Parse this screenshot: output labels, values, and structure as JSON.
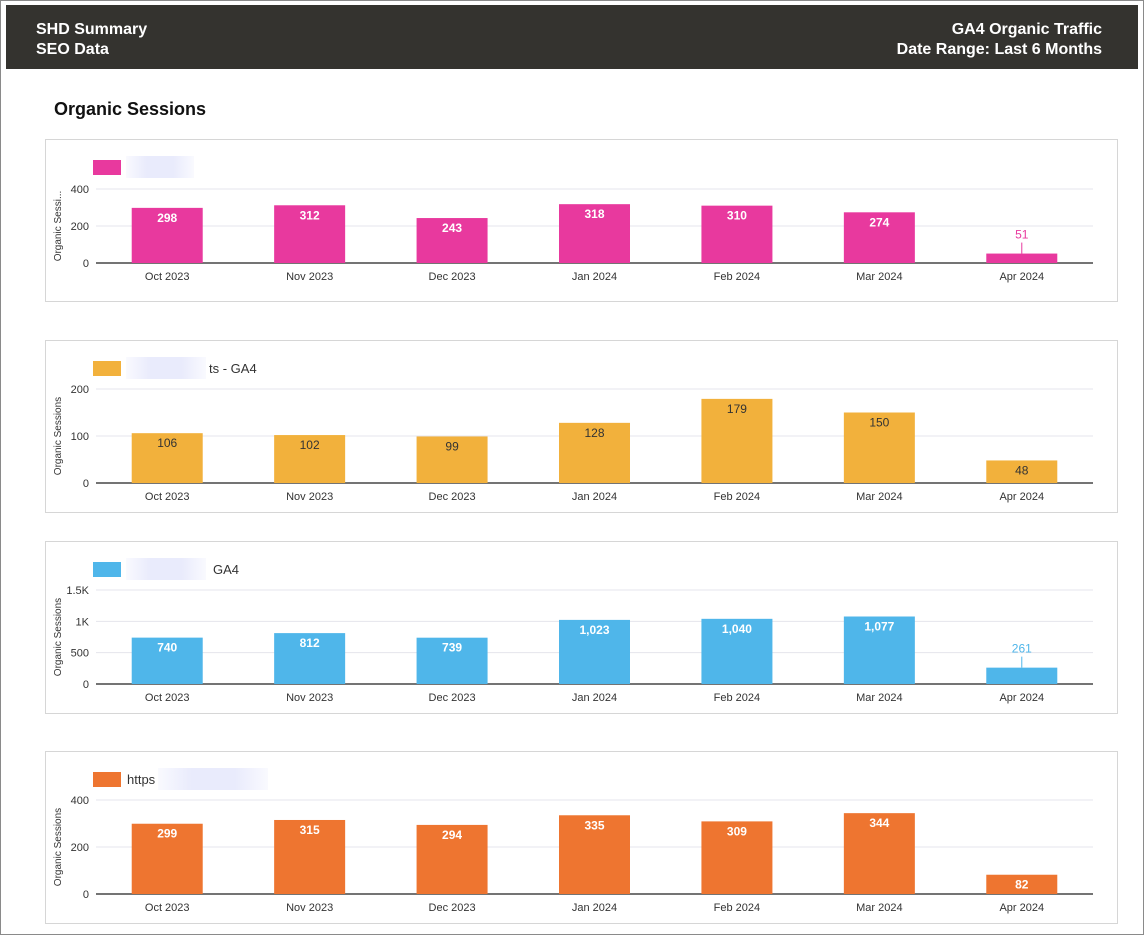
{
  "header": {
    "title": "SHD Summary",
    "subtitle": "SEO Data",
    "right_title": "GA4 Organic Traffic",
    "date_range": "Date Range: Last 6 Months"
  },
  "section_title": "Organic Sessions",
  "charts": [
    {
      "legend_text": "",
      "ylabel": "Organic Sessi..."
    },
    {
      "legend_text": "ts - GA4",
      "ylabel": "Organic Sessions"
    },
    {
      "legend_text": "GA4",
      "ylabel": "Organic Sessions"
    },
    {
      "legend_text": "https",
      "ylabel": "Organic Sessions"
    }
  ],
  "colors": {
    "chart1": "#e8399e",
    "chart2": "#f2b13c",
    "chart3": "#4fb6ea",
    "chart4": "#ee7530",
    "header_bg": "#34332f"
  },
  "chart_data": [
    {
      "type": "bar",
      "categories": [
        "Oct 2023",
        "Nov 2023",
        "Dec 2023",
        "Jan 2024",
        "Feb 2024",
        "Mar 2024",
        "Apr 2024"
      ],
      "values": [
        298,
        312,
        243,
        318,
        310,
        274,
        51
      ],
      "value_labels": [
        "298",
        "312",
        "243",
        "318",
        "310",
        "274",
        "51"
      ],
      "ylabel": "Organic Sessi...",
      "ylim": [
        0,
        400
      ],
      "yticks": [
        0,
        200,
        400
      ],
      "ytick_labels": [
        "0",
        "200",
        "400"
      ],
      "color": "#e8399e",
      "label_color": "#ffffff",
      "grid": true
    },
    {
      "type": "bar",
      "categories": [
        "Oct 2023",
        "Nov 2023",
        "Dec 2023",
        "Jan 2024",
        "Feb 2024",
        "Mar 2024",
        "Apr 2024"
      ],
      "values": [
        106,
        102,
        99,
        128,
        179,
        150,
        48
      ],
      "value_labels": [
        "106",
        "102",
        "99",
        "128",
        "179",
        "150",
        "48"
      ],
      "ylabel": "Organic Sessions",
      "ylim": [
        0,
        200
      ],
      "yticks": [
        0,
        100,
        200
      ],
      "ytick_labels": [
        "0",
        "100",
        "200"
      ],
      "color": "#f2b13c",
      "label_color": "#333333",
      "grid": true
    },
    {
      "type": "bar",
      "categories": [
        "Oct 2023",
        "Nov 2023",
        "Dec 2023",
        "Jan 2024",
        "Feb 2024",
        "Mar 2024",
        "Apr 2024"
      ],
      "values": [
        740,
        812,
        739,
        1023,
        1040,
        1077,
        261
      ],
      "value_labels": [
        "740",
        "812",
        "739",
        "1,023",
        "1,040",
        "1,077",
        "261"
      ],
      "ylabel": "Organic Sessions",
      "ylim": [
        0,
        1500
      ],
      "yticks": [
        0,
        500,
        1000,
        1500
      ],
      "ytick_labels": [
        "0",
        "500",
        "1K",
        "1.5K"
      ],
      "color": "#4fb6ea",
      "label_color": "#ffffff",
      "grid": true
    },
    {
      "type": "bar",
      "categories": [
        "Oct 2023",
        "Nov 2023",
        "Dec 2023",
        "Jan 2024",
        "Feb 2024",
        "Mar 2024",
        "Apr 2024"
      ],
      "values": [
        299,
        315,
        294,
        335,
        309,
        344,
        82
      ],
      "value_labels": [
        "299",
        "315",
        "294",
        "335",
        "309",
        "344",
        "82"
      ],
      "ylabel": "Organic Sessions",
      "ylim": [
        0,
        400
      ],
      "yticks": [
        0,
        200,
        400
      ],
      "ytick_labels": [
        "0",
        "200",
        "400"
      ],
      "color": "#ee7530",
      "label_color": "#ffffff",
      "grid": true
    }
  ]
}
